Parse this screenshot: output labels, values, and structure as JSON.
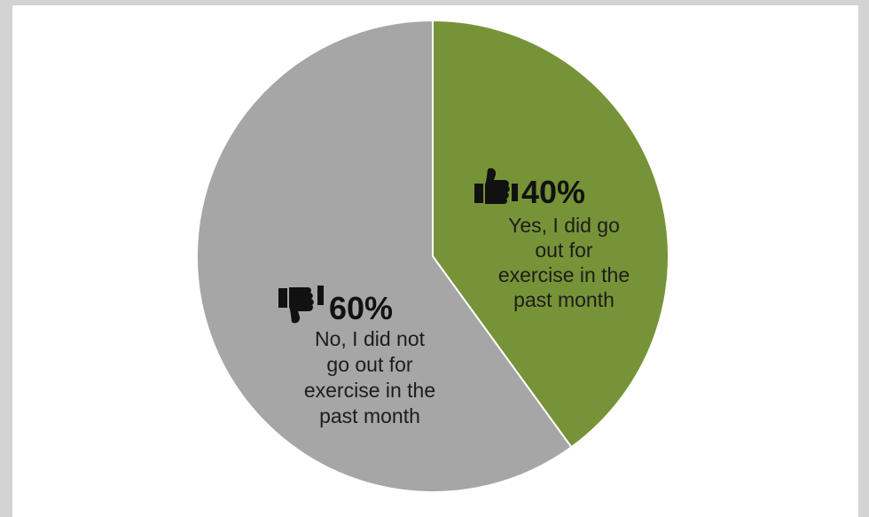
{
  "colors": {
    "frame": "#d3d3d3",
    "panel": "#ffffff",
    "slice_stroke": "#ffffff",
    "text": "#111111",
    "icon": "#111111"
  },
  "chart_data": {
    "type": "pie",
    "start_angle_deg": 0,
    "direction": "clockwise",
    "slices": [
      {
        "key": "yes",
        "value": 40,
        "color": "#779337",
        "percent_label": "40%",
        "text_lines": [
          "Yes, I did go",
          "out for",
          "exercise in the",
          "past month"
        ],
        "icon": "thumbs-up-icon"
      },
      {
        "key": "no",
        "value": 60,
        "color": "#a6a6a6",
        "percent_label": "60%",
        "text_lines": [
          "No, I did not",
          "go out for",
          "exercise in the",
          "past month"
        ],
        "icon": "thumbs-down-icon"
      }
    ]
  }
}
